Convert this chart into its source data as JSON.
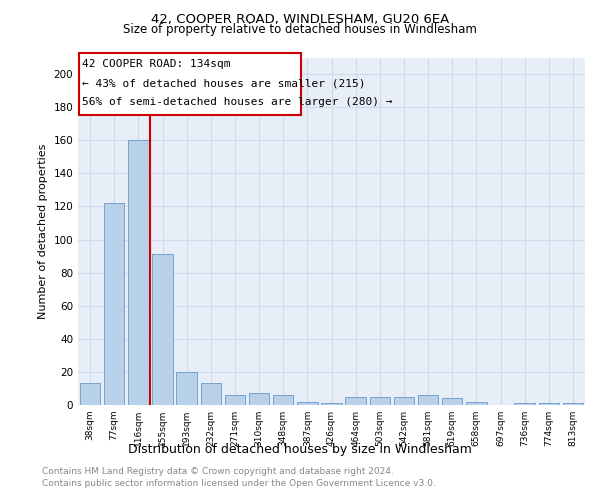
{
  "title": "42, COOPER ROAD, WINDLESHAM, GU20 6EA",
  "subtitle": "Size of property relative to detached houses in Windlesham",
  "xlabel": "Distribution of detached houses by size in Windlesham",
  "ylabel": "Number of detached properties",
  "categories": [
    "38sqm",
    "77sqm",
    "116sqm",
    "155sqm",
    "193sqm",
    "232sqm",
    "271sqm",
    "310sqm",
    "348sqm",
    "387sqm",
    "426sqm",
    "464sqm",
    "503sqm",
    "542sqm",
    "581sqm",
    "619sqm",
    "658sqm",
    "697sqm",
    "736sqm",
    "774sqm",
    "813sqm"
  ],
  "values": [
    13,
    122,
    160,
    91,
    20,
    13,
    6,
    7,
    6,
    2,
    1,
    5,
    5,
    5,
    6,
    4,
    2,
    0,
    1,
    1,
    1
  ],
  "bar_color": "#b8d0e8",
  "bar_edge_color": "#6699cc",
  "annotation_title": "42 COOPER ROAD: 134sqm",
  "annotation_line1": "← 43% of detached houses are smaller (215)",
  "annotation_line2": "56% of semi-detached houses are larger (280) →",
  "annotation_box_color": "#ffffff",
  "annotation_box_edge": "#cc0000",
  "grid_color": "#d0daea",
  "plot_bg_color": "#e8eef8",
  "background_color": "#ffffff",
  "footer_line1": "Contains HM Land Registry data © Crown copyright and database right 2024.",
  "footer_line2": "Contains public sector information licensed under the Open Government Licence v3.0.",
  "ylim": [
    0,
    210
  ],
  "yticks": [
    0,
    20,
    40,
    60,
    80,
    100,
    120,
    140,
    160,
    180,
    200
  ]
}
